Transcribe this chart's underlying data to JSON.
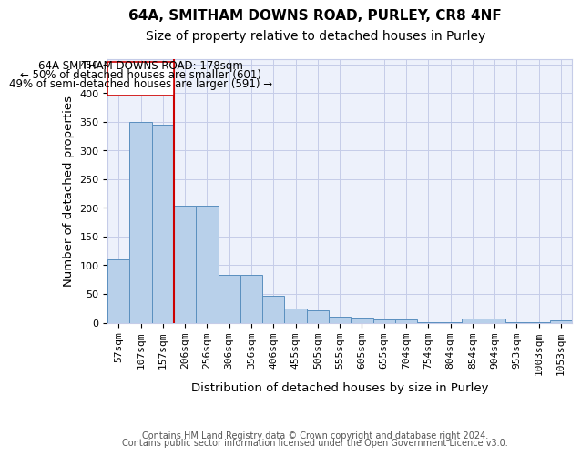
{
  "title_line1": "64A, SMITHAM DOWNS ROAD, PURLEY, CR8 4NF",
  "title_line2": "Size of property relative to detached houses in Purley",
  "xlabel": "Distribution of detached houses by size in Purley",
  "ylabel": "Number of detached properties",
  "footer_line1": "Contains HM Land Registry data © Crown copyright and database right 2024.",
  "footer_line2": "Contains public sector information licensed under the Open Government Licence v3.0.",
  "annotation_line1": "64A SMITHAM DOWNS ROAD: 178sqm",
  "annotation_line2": "← 50% of detached houses are smaller (601)",
  "annotation_line3": "49% of semi-detached houses are larger (591) →",
  "bin_labels": [
    "57sqm",
    "107sqm",
    "157sqm",
    "206sqm",
    "256sqm",
    "306sqm",
    "356sqm",
    "406sqm",
    "455sqm",
    "505sqm",
    "555sqm",
    "605sqm",
    "655sqm",
    "704sqm",
    "754sqm",
    "804sqm",
    "854sqm",
    "904sqm",
    "953sqm",
    "1003sqm",
    "1053sqm"
  ],
  "bar_heights": [
    110,
    350,
    345,
    204,
    204,
    84,
    84,
    47,
    24,
    21,
    10,
    8,
    6,
    5,
    1,
    1,
    7,
    7,
    1,
    1,
    4
  ],
  "bar_color": "#b8d0ea",
  "bar_edge_color": "#5a8fbf",
  "vline_color": "#cc0000",
  "ylim": [
    0,
    460
  ],
  "yticks": [
    0,
    50,
    100,
    150,
    200,
    250,
    300,
    350,
    400,
    450
  ],
  "background_color": "#edf1fb",
  "grid_color": "#c5cce8",
  "annotation_box_color": "#ffffff",
  "annotation_box_edge": "#cc0000",
  "title_fontsize": 11,
  "subtitle_fontsize": 10,
  "axis_label_fontsize": 9.5,
  "tick_fontsize": 8,
  "annotation_fontsize": 8.5,
  "footer_fontsize": 7
}
